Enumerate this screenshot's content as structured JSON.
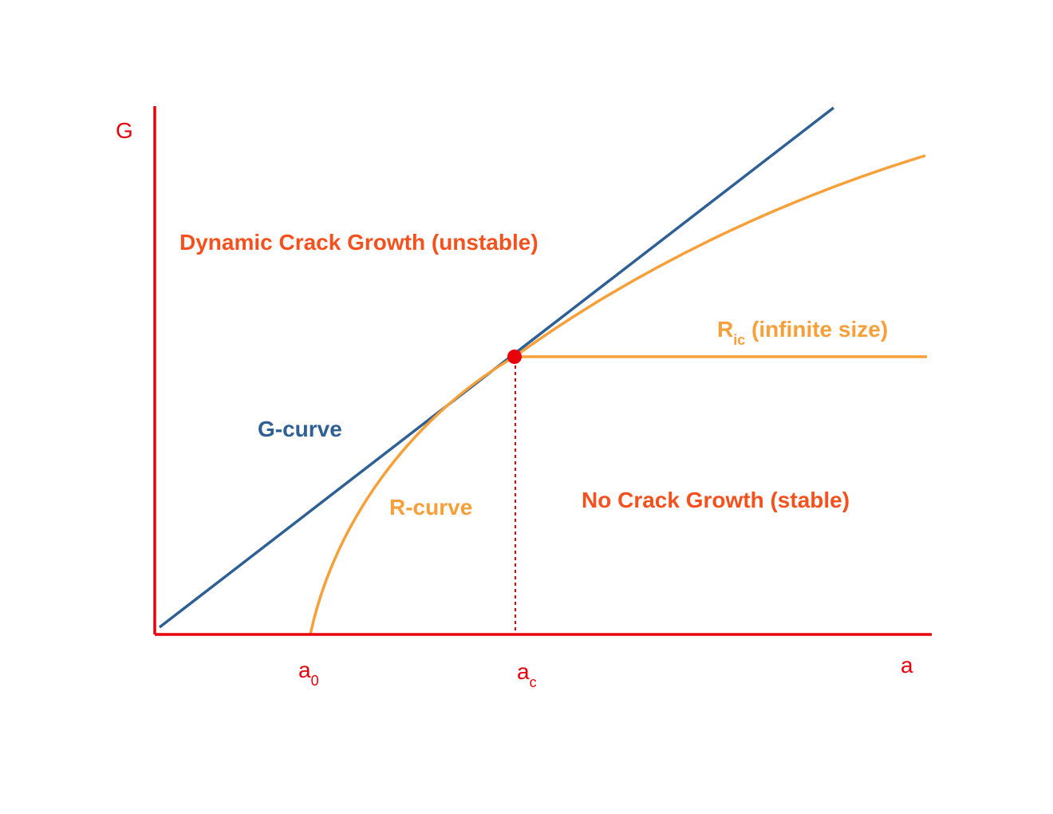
{
  "colors": {
    "axis": "#e8000b",
    "g_curve": "#2e5f95",
    "r_curve": "#f7a03a",
    "region_text": "#f4511e",
    "critical_point": "#e8000b"
  },
  "labels": {
    "y_axis": "G",
    "x_axis": "a",
    "a0_main": "a",
    "a0_sub": "0",
    "ac_main": "a",
    "ac_sub": "c",
    "unstable_region": "Dynamic Crack Growth (unstable)",
    "stable_region": "No Crack Growth (stable)",
    "g_curve": "G-curve",
    "r_curve": "R-curve",
    "ric_main": "R",
    "ric_sub": "ic",
    "ric_rest": " (infinite size)"
  }
}
